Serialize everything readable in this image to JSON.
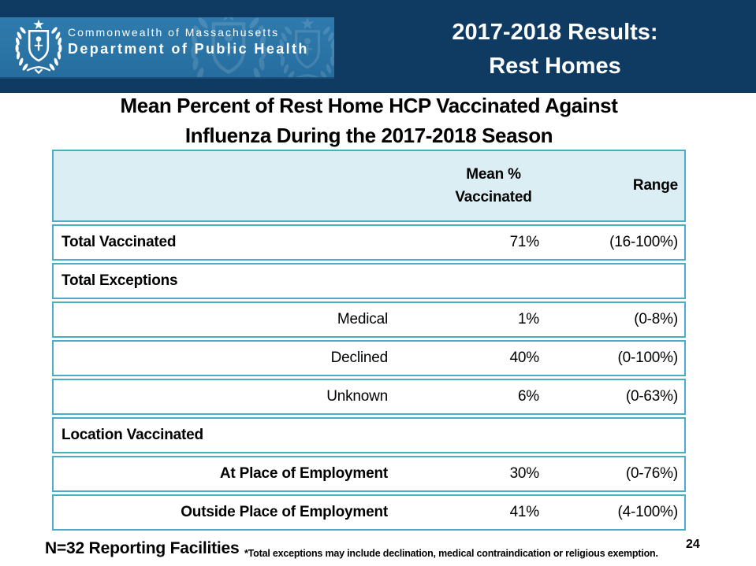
{
  "header": {
    "org_line1": "Commonwealth of Massachusetts",
    "org_line2": "Department of Public Health",
    "title_line1": "2017-2018 Results:",
    "title_line2": "Rest Homes"
  },
  "subtitle": {
    "line1": "Mean Percent of Rest Home HCP Vaccinated Against",
    "line2": "Influenza During the 2017-2018 Season"
  },
  "table": {
    "header": {
      "mean_line1": "Mean %",
      "mean_line2": "Vaccinated",
      "range_label": "Range"
    },
    "rows": [
      {
        "label": "Total Vaccinated",
        "style": "bold-left",
        "mean": "71%",
        "range": "(16-100%)"
      },
      {
        "label": "Total Exceptions",
        "style": "section",
        "mean": "",
        "range": ""
      },
      {
        "label": "Medical",
        "style": "sub",
        "mean": "1%",
        "range": "(0-8%)"
      },
      {
        "label": "Declined",
        "style": "sub",
        "mean": "40%",
        "range": "(0-100%)"
      },
      {
        "label": "Unknown",
        "style": "sub",
        "mean": "6%",
        "range": "(0-63%)"
      },
      {
        "label": "Location Vaccinated",
        "style": "section",
        "mean": "",
        "range": ""
      },
      {
        "label": "At Place of Employment",
        "style": "sub-bold",
        "mean": "30%",
        "range": "(0-76%)"
      },
      {
        "label": "Outside Place of Employment",
        "style": "sub-bold",
        "mean": "41%",
        "range": "(4-100%)"
      }
    ]
  },
  "footer": {
    "n_label": "N=32 Reporting Facilities",
    "footnote": "*Total exceptions may include declination, medical contraindication or religious exemption.",
    "page_number": "24"
  },
  "colors": {
    "header_navy": "#0f3a62",
    "banner_blue": "#2a74a6",
    "table_border_teal": "#4bacc6",
    "table_header_fill": "#daeef3",
    "title_text": "#ffffff",
    "body_text": "#000000"
  }
}
